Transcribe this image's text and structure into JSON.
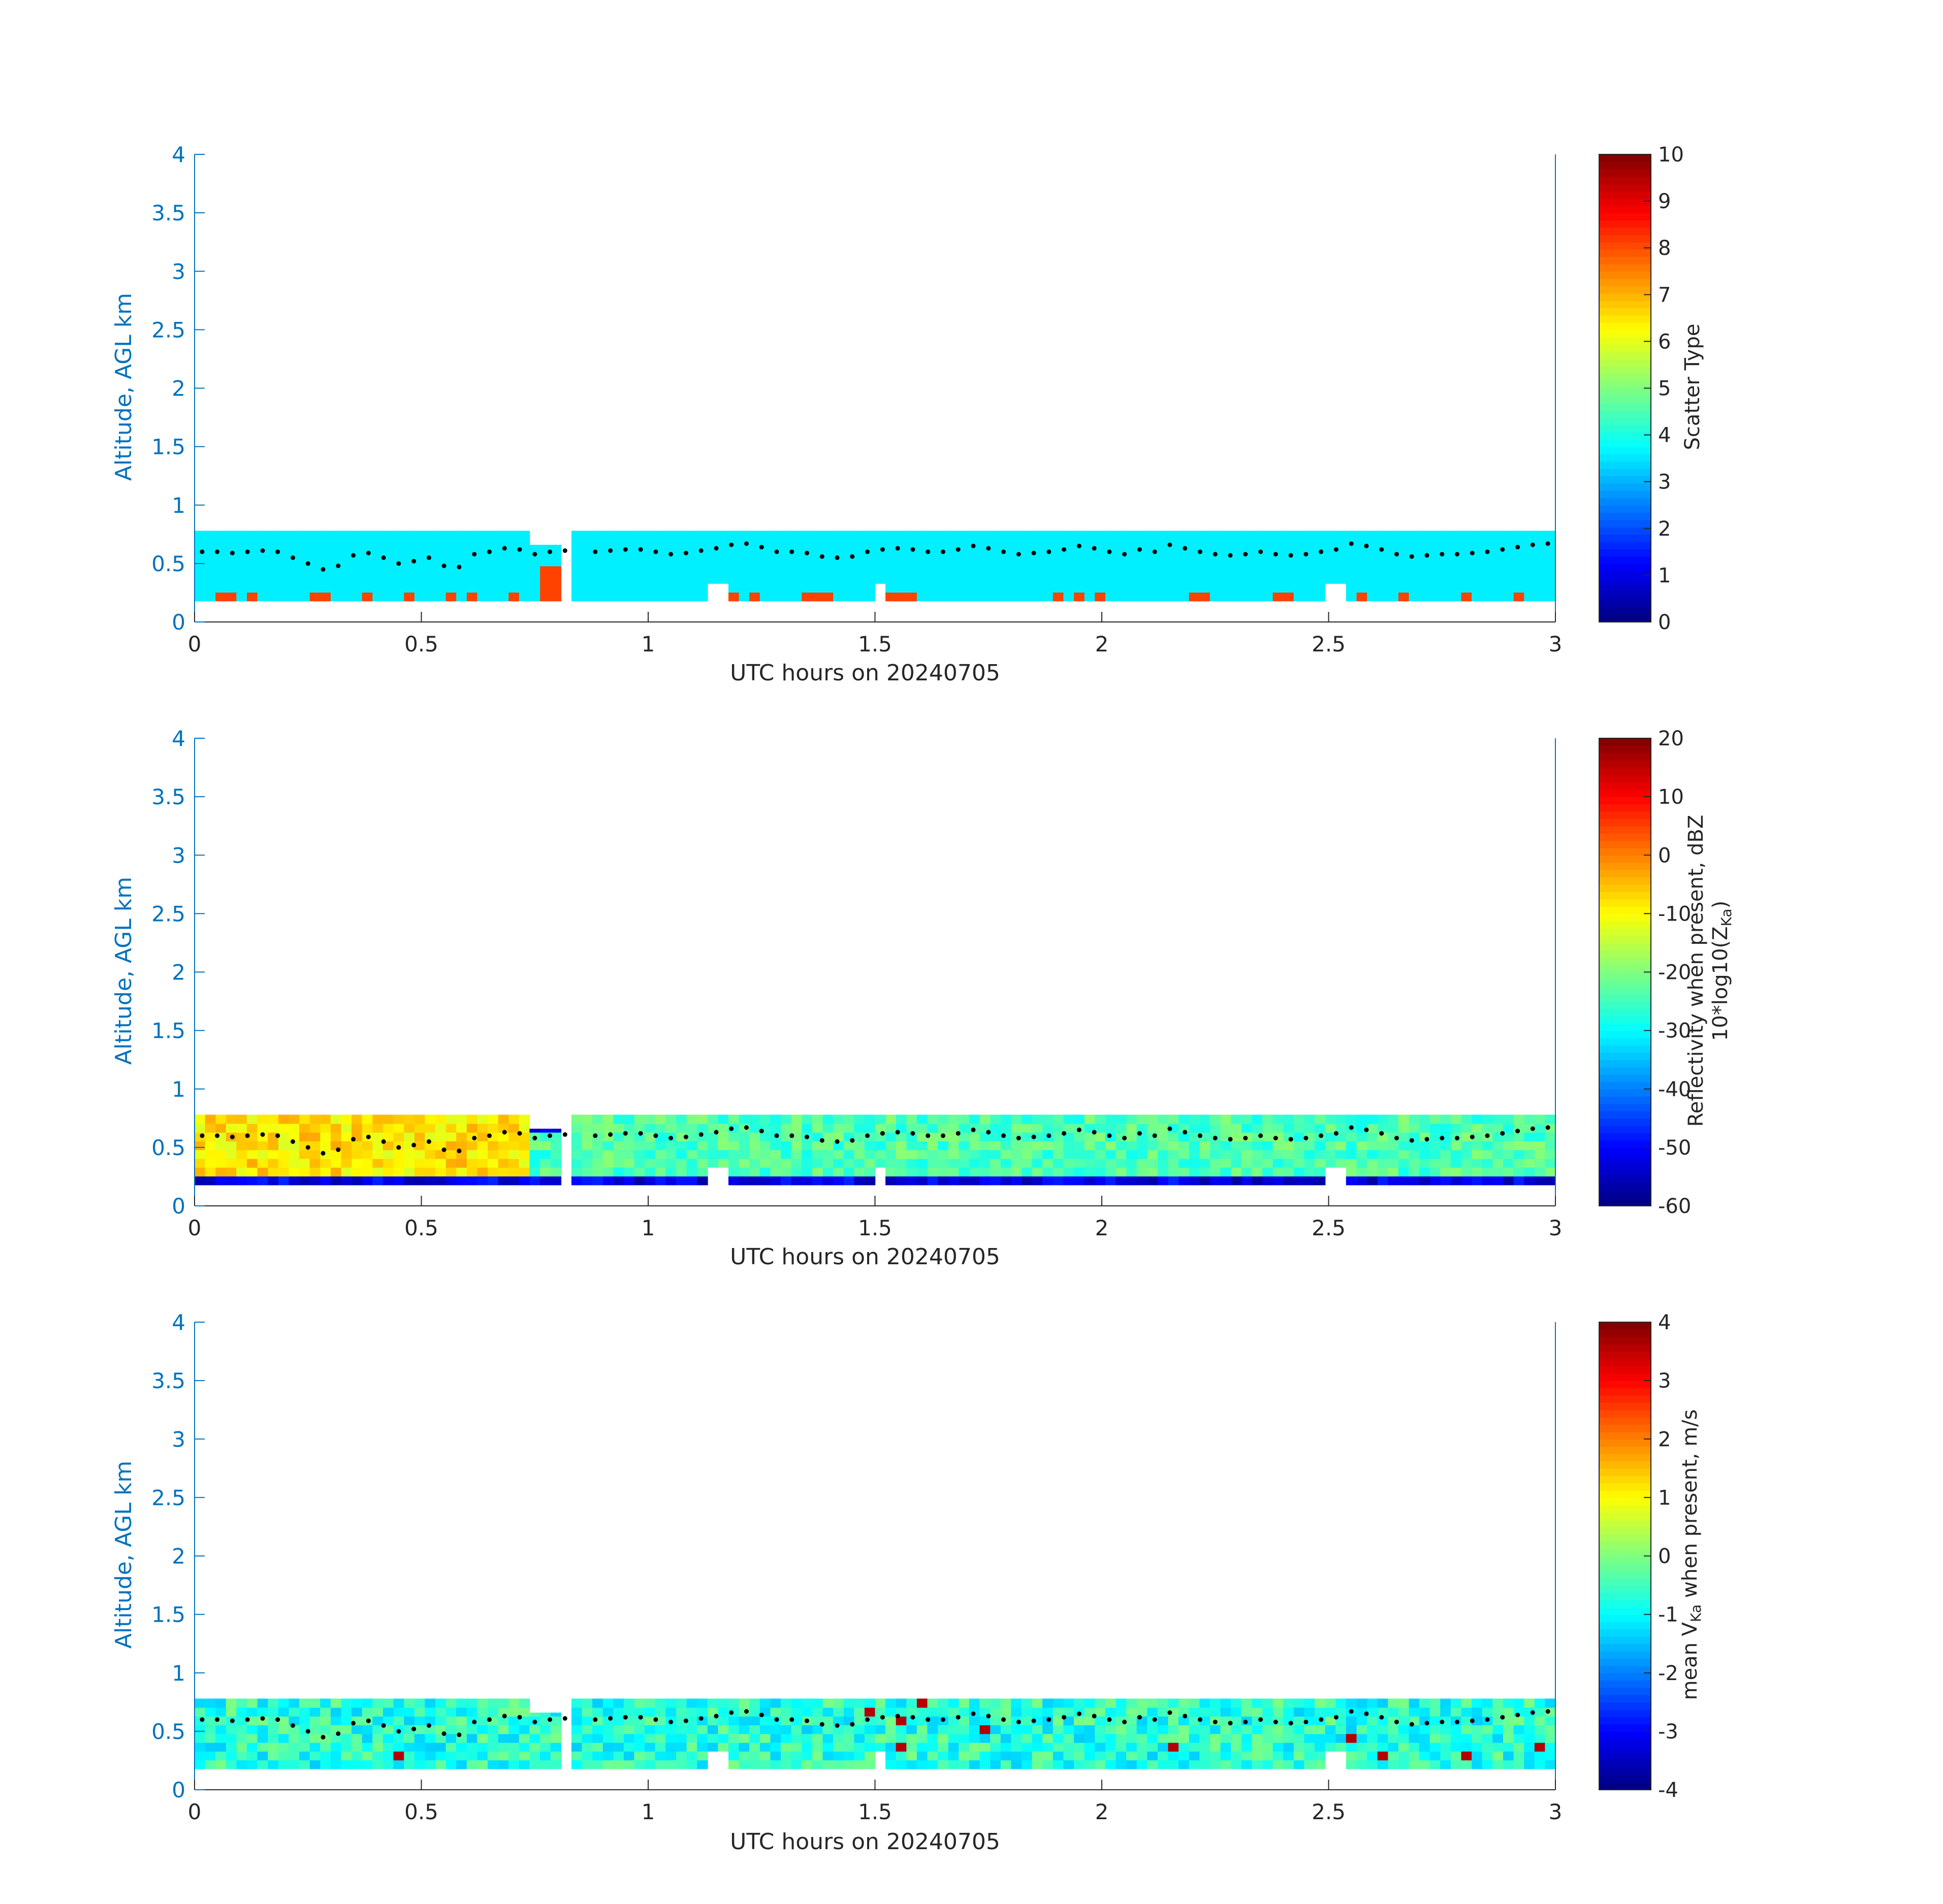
{
  "colors": {
    "y_axis": "#0072BD",
    "x_axis": "#262626",
    "background": "#ffffff",
    "dots": "#000000",
    "colormap": "jet"
  },
  "chart_data": [
    {
      "id": "scatter-type",
      "type": "heatmap",
      "xlabel": "UTC hours on 20240705",
      "ylabel": "Altitude, AGL km",
      "xlim": [
        0,
        3
      ],
      "ylim": [
        0,
        4
      ],
      "xticks": [
        "0",
        "0.5",
        "1",
        "1.5",
        "2",
        "2.5",
        "3"
      ],
      "yticks": [
        "0",
        "0.5",
        "1",
        "1.5",
        "2",
        "2.5",
        "3",
        "3.5",
        "4"
      ],
      "colorbar_label": "Scatter Type",
      "clim": [
        0,
        10
      ],
      "cticks": [
        "0",
        "1",
        "2",
        "3",
        "4",
        "5",
        "6",
        "7",
        "8",
        "9",
        "10"
      ],
      "base_value": 3.6,
      "accent_value": 8.1,
      "cloud_base_km": [
        0.6,
        0.6,
        0.59,
        0.6,
        0.61,
        0.6,
        0.55,
        0.5,
        0.45,
        0.48,
        0.57,
        0.59,
        0.55,
        0.5,
        0.52,
        0.55,
        0.48,
        0.47,
        0.58,
        0.6,
        0.63,
        0.62,
        0.58,
        0.6,
        0.61,
        null,
        0.6,
        0.61,
        0.62,
        0.62,
        0.6,
        0.58,
        0.59,
        0.61,
        0.63,
        0.66,
        0.67,
        0.64,
        0.6,
        0.6,
        0.59,
        0.56,
        0.55,
        0.56,
        0.6,
        0.62,
        0.63,
        0.62,
        0.6,
        0.6,
        0.62,
        0.65,
        0.63,
        0.6,
        0.58,
        0.59,
        0.6,
        0.62,
        0.65,
        0.63,
        0.6,
        0.58,
        0.62,
        0.6,
        0.66,
        0.63,
        0.6,
        0.58,
        0.57,
        0.58,
        0.6,
        0.58,
        0.57,
        0.58,
        0.6,
        0.62,
        0.67,
        0.65,
        0.62,
        0.58,
        0.56,
        0.57,
        0.58,
        0.58,
        0.59,
        0.6,
        0.62,
        0.64,
        0.66,
        0.67
      ]
    },
    {
      "id": "reflectivity",
      "type": "heatmap",
      "xlabel": "UTC hours on 20240705",
      "ylabel": "Altitude, AGL km",
      "xlim": [
        0,
        3
      ],
      "ylim": [
        0,
        4
      ],
      "xticks": [
        "0",
        "0.5",
        "1",
        "1.5",
        "2",
        "2.5",
        "3"
      ],
      "yticks": [
        "0",
        "0.5",
        "1",
        "1.5",
        "2",
        "2.5",
        "3",
        "3.5",
        "4"
      ],
      "colorbar_label_line1": "Reflectivity when present, dBZ",
      "colorbar_label_line2_prefix": "10*log10(Z",
      "colorbar_label_line2_sub": "Ka",
      "colorbar_label_line2_suffix": ")",
      "clim": [
        -60,
        20
      ],
      "cticks": [
        "-60",
        "-50",
        "-40",
        "-30",
        "-20",
        "-10",
        "0",
        "10",
        "20"
      ],
      "strong_echo_dbz": -8,
      "weak_echo_dbz": -24,
      "edge_dbz": -52,
      "cloud_base_km": [
        0.6,
        0.6,
        0.59,
        0.6,
        0.61,
        0.6,
        0.55,
        0.5,
        0.45,
        0.48,
        0.57,
        0.59,
        0.55,
        0.5,
        0.52,
        0.55,
        0.48,
        0.47,
        0.58,
        0.6,
        0.63,
        0.62,
        0.58,
        0.6,
        0.61,
        null,
        0.6,
        0.61,
        0.62,
        0.62,
        0.6,
        0.58,
        0.59,
        0.61,
        0.63,
        0.66,
        0.67,
        0.64,
        0.6,
        0.6,
        0.59,
        0.56,
        0.55,
        0.56,
        0.6,
        0.62,
        0.63,
        0.62,
        0.6,
        0.6,
        0.62,
        0.65,
        0.63,
        0.6,
        0.58,
        0.59,
        0.6,
        0.62,
        0.65,
        0.63,
        0.6,
        0.58,
        0.62,
        0.6,
        0.66,
        0.63,
        0.6,
        0.58,
        0.57,
        0.58,
        0.6,
        0.58,
        0.57,
        0.58,
        0.6,
        0.62,
        0.67,
        0.65,
        0.62,
        0.58,
        0.56,
        0.57,
        0.58,
        0.58,
        0.59,
        0.6,
        0.62,
        0.64,
        0.66,
        0.67
      ]
    },
    {
      "id": "doppler-velocity",
      "type": "heatmap",
      "xlabel": "UTC hours on 20240705",
      "ylabel": "Altitude, AGL km",
      "xlim": [
        0,
        3
      ],
      "ylim": [
        0,
        4
      ],
      "xticks": [
        "0",
        "0.5",
        "1",
        "1.5",
        "2",
        "2.5",
        "3"
      ],
      "yticks": [
        "0",
        "0.5",
        "1",
        "1.5",
        "2",
        "2.5",
        "3",
        "3.5",
        "4"
      ],
      "colorbar_label_prefix": "mean V",
      "colorbar_label_sub": "Ka",
      "colorbar_label_suffix": " when present, m/s",
      "clim": [
        -4,
        4
      ],
      "cticks": [
        "-4",
        "-3",
        "-2",
        "-1",
        "0",
        "1",
        "2",
        "3",
        "4"
      ],
      "typical_velocity_ms": -0.7,
      "cloud_base_km": [
        0.6,
        0.6,
        0.59,
        0.6,
        0.61,
        0.6,
        0.55,
        0.5,
        0.45,
        0.48,
        0.57,
        0.59,
        0.55,
        0.5,
        0.52,
        0.55,
        0.48,
        0.47,
        0.58,
        0.6,
        0.63,
        0.62,
        0.58,
        0.6,
        0.61,
        null,
        0.6,
        0.61,
        0.62,
        0.62,
        0.6,
        0.58,
        0.59,
        0.61,
        0.63,
        0.66,
        0.67,
        0.64,
        0.6,
        0.6,
        0.59,
        0.56,
        0.55,
        0.56,
        0.6,
        0.62,
        0.63,
        0.62,
        0.6,
        0.6,
        0.62,
        0.65,
        0.63,
        0.6,
        0.58,
        0.59,
        0.6,
        0.62,
        0.65,
        0.63,
        0.6,
        0.58,
        0.62,
        0.6,
        0.66,
        0.63,
        0.6,
        0.58,
        0.57,
        0.58,
        0.6,
        0.58,
        0.57,
        0.58,
        0.6,
        0.62,
        0.67,
        0.65,
        0.62,
        0.58,
        0.56,
        0.57,
        0.58,
        0.58,
        0.59,
        0.6,
        0.62,
        0.64,
        0.66,
        0.67
      ]
    }
  ]
}
